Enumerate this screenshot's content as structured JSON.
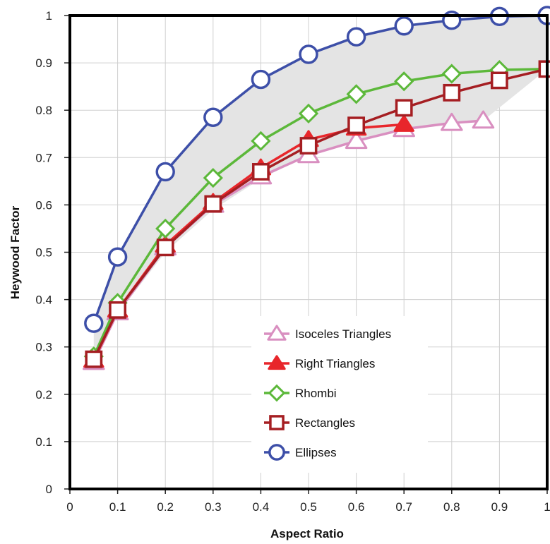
{
  "chart_data": {
    "type": "line",
    "xlabel": "Aspect Ratio",
    "ylabel": "Heywood Factor",
    "xlim": [
      0,
      1
    ],
    "ylim": [
      0,
      1
    ],
    "xticks": [
      "0",
      "0.1",
      "0.2",
      "0.3",
      "0.4",
      "0.5",
      "0.6",
      "0.7",
      "0.8",
      "0.9",
      "1"
    ],
    "yticks": [
      "0",
      "0.1",
      "0.2",
      "0.3",
      "0.4",
      "0.5",
      "0.6",
      "0.7",
      "0.8",
      "0.9",
      "1"
    ],
    "grid": true,
    "legend_position": "bottom-center",
    "shaded_region": {
      "description": "gray band",
      "color": "#e4e4e4",
      "upper": [
        [
          0.05,
          0.35
        ],
        [
          0.1,
          0.49
        ],
        [
          0.2,
          0.67
        ],
        [
          0.3,
          0.785
        ],
        [
          0.4,
          0.865
        ],
        [
          0.5,
          0.918
        ],
        [
          0.6,
          0.955
        ],
        [
          0.7,
          0.978
        ],
        [
          0.8,
          0.99
        ],
        [
          0.9,
          0.998
        ],
        [
          1.0,
          1.0
        ]
      ],
      "lower": [
        [
          1.0,
          0.887
        ],
        [
          0.866,
          0.778
        ],
        [
          0.8,
          0.773
        ],
        [
          0.7,
          0.76
        ],
        [
          0.6,
          0.735
        ],
        [
          0.5,
          0.705
        ],
        [
          0.4,
          0.655
        ],
        [
          0.3,
          0.59
        ],
        [
          0.2,
          0.5
        ],
        [
          0.1,
          0.37
        ],
        [
          0.05,
          0.268
        ]
      ]
    },
    "series": [
      {
        "name": "Isoceles Triangles",
        "color": "#d98fc0",
        "marker": "triangle-open",
        "x": [
          0.05,
          0.1,
          0.2,
          0.3,
          0.4,
          0.5,
          0.6,
          0.7,
          0.8,
          0.866
        ],
        "y": [
          0.268,
          0.373,
          0.51,
          0.6,
          0.66,
          0.705,
          0.735,
          0.76,
          0.773,
          0.778
        ]
      },
      {
        "name": "Right Triangles",
        "color": "#e8262b",
        "marker": "triangle-filled",
        "x": [
          0.05,
          0.1,
          0.2,
          0.3,
          0.4,
          0.5,
          0.6,
          0.7
        ],
        "y": [
          0.272,
          0.378,
          0.515,
          0.605,
          0.678,
          0.738,
          0.762,
          0.77
        ]
      },
      {
        "name": "Rhombi",
        "color": "#5cb83a",
        "marker": "diamond-open",
        "x": [
          0.05,
          0.1,
          0.2,
          0.3,
          0.4,
          0.5,
          0.6,
          0.7,
          0.8,
          0.9,
          1.0
        ],
        "y": [
          0.28,
          0.393,
          0.55,
          0.657,
          0.735,
          0.793,
          0.834,
          0.861,
          0.877,
          0.885,
          0.887
        ]
      },
      {
        "name": "Rectangles",
        "color": "#a51e22",
        "marker": "square-open",
        "x": [
          0.05,
          0.1,
          0.2,
          0.3,
          0.4,
          0.5,
          0.6,
          0.7,
          0.8,
          0.9,
          1.0
        ],
        "y": [
          0.274,
          0.378,
          0.51,
          0.602,
          0.67,
          0.725,
          0.768,
          0.805,
          0.837,
          0.863,
          0.887
        ]
      },
      {
        "name": "Ellipses",
        "color": "#3d4fa8",
        "marker": "circle-open",
        "x": [
          0.05,
          0.1,
          0.2,
          0.3,
          0.4,
          0.5,
          0.6,
          0.7,
          0.8,
          0.9,
          1.0
        ],
        "y": [
          0.35,
          0.49,
          0.67,
          0.785,
          0.865,
          0.918,
          0.955,
          0.978,
          0.99,
          0.998,
          1.0
        ]
      }
    ]
  }
}
